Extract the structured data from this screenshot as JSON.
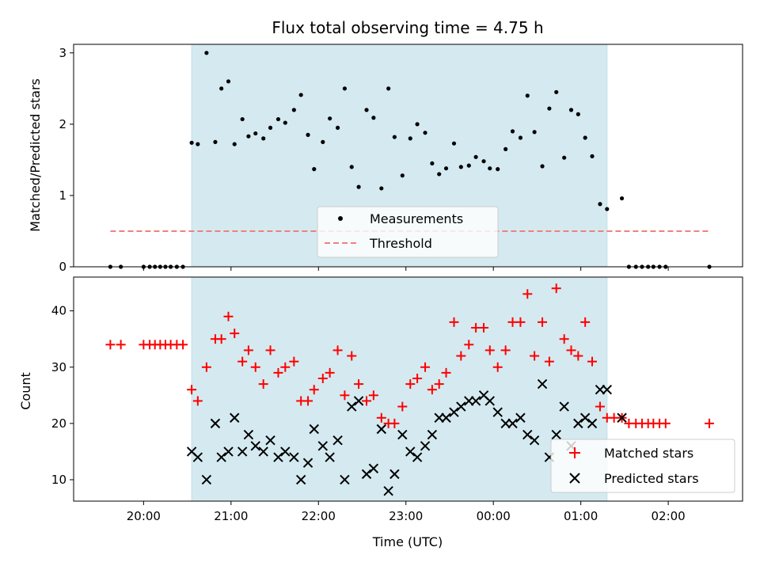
{
  "chart_data": [
    {
      "type": "scatter",
      "title": "Flux total observing time = 4.75 h",
      "ylabel": "Matched/Predicted stars",
      "xlabel": "",
      "x_unit": "hours after 20:00 UTC",
      "xlim": [
        -0.8,
        6.85
      ],
      "ylim": [
        0,
        3.12
      ],
      "yticks": [
        0,
        1,
        2,
        3
      ],
      "observing_window": {
        "start": 0.55,
        "end": 5.3,
        "color": "#d4eaf0"
      },
      "legend_position": "lower center",
      "series": [
        {
          "name": "Measurements",
          "marker": "dot",
          "color": "#000000",
          "points": [
            [
              -0.38,
              0
            ],
            [
              -0.26,
              0
            ],
            [
              0.0,
              0
            ],
            [
              0.07,
              0
            ],
            [
              0.13,
              0
            ],
            [
              0.19,
              0
            ],
            [
              0.25,
              0
            ],
            [
              0.31,
              0
            ],
            [
              0.38,
              0
            ],
            [
              0.45,
              0
            ],
            [
              0.55,
              1.74
            ],
            [
              0.62,
              1.72
            ],
            [
              0.72,
              3.0
            ],
            [
              0.82,
              1.75
            ],
            [
              0.89,
              2.5
            ],
            [
              0.97,
              2.6
            ],
            [
              1.04,
              1.72
            ],
            [
              1.13,
              2.07
            ],
            [
              1.2,
              1.83
            ],
            [
              1.28,
              1.87
            ],
            [
              1.37,
              1.8
            ],
            [
              1.45,
              1.95
            ],
            [
              1.54,
              2.07
            ],
            [
              1.62,
              2.02
            ],
            [
              1.72,
              2.2
            ],
            [
              1.8,
              2.41
            ],
            [
              1.88,
              1.85
            ],
            [
              1.95,
              1.37
            ],
            [
              2.05,
              1.75
            ],
            [
              2.13,
              2.08
            ],
            [
              2.22,
              1.95
            ],
            [
              2.3,
              2.5
            ],
            [
              2.38,
              1.4
            ],
            [
              2.46,
              1.12
            ],
            [
              2.55,
              2.2
            ],
            [
              2.63,
              2.09
            ],
            [
              2.72,
              1.1
            ],
            [
              2.8,
              2.5
            ],
            [
              2.87,
              1.82
            ],
            [
              2.96,
              1.28
            ],
            [
              3.05,
              1.8
            ],
            [
              3.13,
              2.0
            ],
            [
              3.22,
              1.88
            ],
            [
              3.3,
              1.45
            ],
            [
              3.38,
              1.3
            ],
            [
              3.46,
              1.38
            ],
            [
              3.55,
              1.73
            ],
            [
              3.63,
              1.4
            ],
            [
              3.72,
              1.42
            ],
            [
              3.8,
              1.54
            ],
            [
              3.89,
              1.48
            ],
            [
              3.96,
              1.38
            ],
            [
              4.05,
              1.37
            ],
            [
              4.14,
              1.65
            ],
            [
              4.22,
              1.9
            ],
            [
              4.31,
              1.81
            ],
            [
              4.39,
              2.4
            ],
            [
              4.47,
              1.89
            ],
            [
              4.56,
              1.41
            ],
            [
              4.64,
              2.22
            ],
            [
              4.72,
              2.45
            ],
            [
              4.81,
              1.53
            ],
            [
              4.89,
              2.2
            ],
            [
              4.97,
              2.14
            ],
            [
              5.05,
              1.81
            ],
            [
              5.13,
              1.55
            ],
            [
              5.22,
              0.88
            ],
            [
              5.3,
              0.81
            ],
            [
              5.47,
              0.96
            ],
            [
              5.55,
              0
            ],
            [
              5.63,
              0
            ],
            [
              5.7,
              0
            ],
            [
              5.77,
              0
            ],
            [
              5.83,
              0
            ],
            [
              5.9,
              0
            ],
            [
              5.97,
              0
            ],
            [
              6.47,
              0
            ]
          ]
        },
        {
          "name": "Threshold",
          "line": "dashed",
          "color": "#f08080",
          "y": 0.5,
          "x_range": [
            -0.38,
            6.47
          ]
        }
      ]
    },
    {
      "type": "scatter",
      "title": "",
      "xlabel": "Time (UTC)",
      "ylabel": "Count",
      "xlim": [
        -0.8,
        6.85
      ],
      "ylim": [
        6.2,
        46
      ],
      "yticks": [
        10,
        20,
        30,
        40
      ],
      "xtick_labels": [
        "20:00",
        "21:00",
        "22:00",
        "23:00",
        "00:00",
        "01:00",
        "02:00"
      ],
      "xtick_values": [
        0,
        1,
        2,
        3,
        4,
        5,
        6
      ],
      "observing_window": {
        "start": 0.55,
        "end": 5.3,
        "color": "#d4eaf0"
      },
      "legend_position": "lower right",
      "series": [
        {
          "name": "Matched stars",
          "marker": "plus",
          "color": "#ff0000",
          "points": [
            [
              -0.38,
              34
            ],
            [
              -0.26,
              34
            ],
            [
              0.0,
              34
            ],
            [
              0.07,
              34
            ],
            [
              0.13,
              34
            ],
            [
              0.19,
              34
            ],
            [
              0.25,
              34
            ],
            [
              0.31,
              34
            ],
            [
              0.38,
              34
            ],
            [
              0.45,
              34
            ],
            [
              0.55,
              26
            ],
            [
              0.62,
              24
            ],
            [
              0.72,
              30
            ],
            [
              0.82,
              35
            ],
            [
              0.89,
              35
            ],
            [
              0.97,
              39
            ],
            [
              1.04,
              36
            ],
            [
              1.13,
              31
            ],
            [
              1.2,
              33
            ],
            [
              1.28,
              30
            ],
            [
              1.37,
              27
            ],
            [
              1.45,
              33
            ],
            [
              1.54,
              29
            ],
            [
              1.62,
              30
            ],
            [
              1.72,
              31
            ],
            [
              1.8,
              24
            ],
            [
              1.88,
              24
            ],
            [
              1.95,
              26
            ],
            [
              2.05,
              28
            ],
            [
              2.13,
              29
            ],
            [
              2.22,
              33
            ],
            [
              2.3,
              25
            ],
            [
              2.38,
              32
            ],
            [
              2.46,
              27
            ],
            [
              2.55,
              24
            ],
            [
              2.63,
              25
            ],
            [
              2.72,
              21
            ],
            [
              2.8,
              20
            ],
            [
              2.87,
              20
            ],
            [
              2.96,
              23
            ],
            [
              3.05,
              27
            ],
            [
              3.13,
              28
            ],
            [
              3.22,
              30
            ],
            [
              3.3,
              26
            ],
            [
              3.38,
              27
            ],
            [
              3.46,
              29
            ],
            [
              3.55,
              38
            ],
            [
              3.63,
              32
            ],
            [
              3.72,
              34
            ],
            [
              3.8,
              37
            ],
            [
              3.89,
              37
            ],
            [
              3.96,
              33
            ],
            [
              4.05,
              30
            ],
            [
              4.14,
              33
            ],
            [
              4.22,
              38
            ],
            [
              4.31,
              38
            ],
            [
              4.39,
              43
            ],
            [
              4.47,
              32
            ],
            [
              4.56,
              38
            ],
            [
              4.64,
              31
            ],
            [
              4.72,
              44
            ],
            [
              4.81,
              35
            ],
            [
              4.89,
              33
            ],
            [
              4.97,
              32
            ],
            [
              5.05,
              38
            ],
            [
              5.13,
              31
            ],
            [
              5.22,
              23
            ],
            [
              5.3,
              21
            ],
            [
              5.38,
              21
            ],
            [
              5.47,
              21
            ],
            [
              5.55,
              20
            ],
            [
              5.63,
              20
            ],
            [
              5.7,
              20
            ],
            [
              5.77,
              20
            ],
            [
              5.83,
              20
            ],
            [
              5.9,
              20
            ],
            [
              5.97,
              20
            ],
            [
              6.47,
              20
            ]
          ]
        },
        {
          "name": "Predicted stars",
          "marker": "x",
          "color": "#000000",
          "points": [
            [
              0.55,
              15
            ],
            [
              0.62,
              14
            ],
            [
              0.72,
              10
            ],
            [
              0.82,
              20
            ],
            [
              0.89,
              14
            ],
            [
              0.97,
              15
            ],
            [
              1.04,
              21
            ],
            [
              1.13,
              15
            ],
            [
              1.2,
              18
            ],
            [
              1.28,
              16
            ],
            [
              1.37,
              15
            ],
            [
              1.45,
              17
            ],
            [
              1.54,
              14
            ],
            [
              1.62,
              15
            ],
            [
              1.72,
              14
            ],
            [
              1.8,
              10
            ],
            [
              1.88,
              13
            ],
            [
              1.95,
              19
            ],
            [
              2.05,
              16
            ],
            [
              2.13,
              14
            ],
            [
              2.22,
              17
            ],
            [
              2.3,
              10
            ],
            [
              2.38,
              23
            ],
            [
              2.46,
              24
            ],
            [
              2.55,
              11
            ],
            [
              2.63,
              12
            ],
            [
              2.72,
              19
            ],
            [
              2.8,
              8
            ],
            [
              2.87,
              11
            ],
            [
              2.96,
              18
            ],
            [
              3.05,
              15
            ],
            [
              3.13,
              14
            ],
            [
              3.22,
              16
            ],
            [
              3.3,
              18
            ],
            [
              3.38,
              21
            ],
            [
              3.46,
              21
            ],
            [
              3.55,
              22
            ],
            [
              3.63,
              23
            ],
            [
              3.72,
              24
            ],
            [
              3.8,
              24
            ],
            [
              3.89,
              25
            ],
            [
              3.96,
              24
            ],
            [
              4.05,
              22
            ],
            [
              4.14,
              20
            ],
            [
              4.22,
              20
            ],
            [
              4.31,
              21
            ],
            [
              4.39,
              18
            ],
            [
              4.47,
              17
            ],
            [
              4.56,
              27
            ],
            [
              4.64,
              14
            ],
            [
              4.72,
              18
            ],
            [
              4.81,
              23
            ],
            [
              4.89,
              16
            ],
            [
              4.97,
              20
            ],
            [
              5.05,
              21
            ],
            [
              5.13,
              20
            ],
            [
              5.22,
              26
            ],
            [
              5.3,
              26
            ],
            [
              5.47,
              21
            ]
          ]
        }
      ]
    }
  ]
}
